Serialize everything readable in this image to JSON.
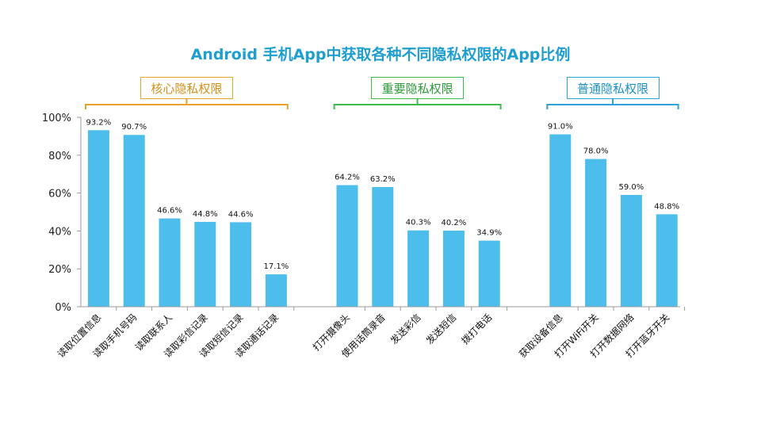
{
  "chart_data": {
    "type": "bar",
    "title": "Android 手机App中获取各种不同隐私权限的App比例",
    "ylim": [
      0,
      100
    ],
    "yticks": [
      "0%",
      "20%",
      "40%",
      "60%",
      "80%",
      "100%"
    ],
    "groups": [
      {
        "label": "核心隐私权限",
        "color": "#e9a32a",
        "categories": [
          "读取位置信息",
          "读取手机号码",
          "读取联系人",
          "读取彩信记录",
          "读取短信记录",
          "读取通话记录"
        ],
        "values": [
          93.2,
          90.7,
          46.6,
          44.8,
          44.6,
          17.1
        ],
        "value_labels": [
          "93.2%",
          "90.7%",
          "46.6%",
          "44.8%",
          "44.6%",
          "17.1%"
        ]
      },
      {
        "label": "重要隐私权限",
        "color": "#3dbb4a",
        "categories": [
          "打开摄像头",
          "使用话筒录音",
          "发送彩信",
          "发送短信",
          "拨打电话"
        ],
        "values": [
          64.2,
          63.2,
          40.3,
          40.2,
          34.9
        ],
        "value_labels": [
          "64.2%",
          "63.2%",
          "40.3%",
          "40.2%",
          "34.9%"
        ]
      },
      {
        "label": "普通隐私权限",
        "color": "#2aa3d6",
        "categories": [
          "获取设备信息",
          "打开WiFi开关",
          "打开数据网络",
          "打开蓝牙开关"
        ],
        "values": [
          91.0,
          78.0,
          59.0,
          48.8
        ],
        "value_labels": [
          "91.0%",
          "78.0%",
          "59.0%",
          "48.8%"
        ]
      }
    ],
    "bar_color": "#4dbdec",
    "grid": false,
    "legend": "none"
  }
}
